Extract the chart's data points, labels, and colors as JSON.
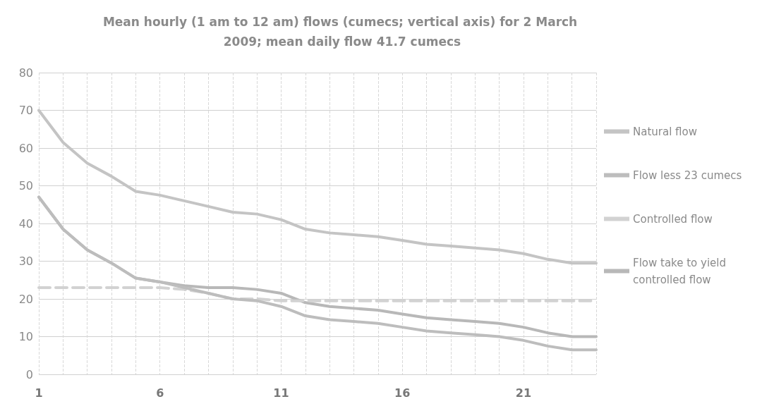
{
  "chart_data": {
    "type": "line",
    "title": "Mean hourly (1 am to 12 am) flows (cumecs; vertical axis) for 2 March 2009; mean daily flow 41.7 cumecs",
    "x": [
      1,
      2,
      3,
      4,
      5,
      6,
      7,
      8,
      9,
      10,
      11,
      12,
      13,
      14,
      15,
      16,
      17,
      18,
      19,
      20,
      21,
      22,
      23,
      24
    ],
    "xlim": [
      1,
      24
    ],
    "xticks": [
      1,
      {
        "value": 2,
        "label": null
      },
      {
        "value": 3,
        "label": null
      },
      {
        "value": 4,
        "label": null
      },
      {
        "value": 5,
        "label": null
      },
      6,
      {
        "value": 7,
        "label": null
      },
      {
        "value": 8,
        "label": null
      },
      {
        "value": 9,
        "label": null
      },
      {
        "value": 10,
        "label": null
      },
      11,
      {
        "value": 12,
        "label": null
      },
      {
        "value": 13,
        "label": null
      },
      {
        "value": 14,
        "label": null
      },
      {
        "value": 15,
        "label": null
      },
      16,
      {
        "value": 17,
        "label": null
      },
      {
        "value": 18,
        "label": null
      },
      {
        "value": 19,
        "label": null
      },
      {
        "value": 20,
        "label": null
      },
      21,
      {
        "value": 22,
        "label": null
      },
      {
        "value": 23,
        "label": null
      },
      {
        "value": 24,
        "label": null
      }
    ],
    "ylim": [
      0,
      80
    ],
    "yticks": [
      0,
      10,
      20,
      30,
      40,
      50,
      60,
      70,
      80
    ],
    "grid": true,
    "legend": "right",
    "marker": "none",
    "series": [
      {
        "name": "Natural flow",
        "color": "#c4c4c4",
        "line_style": "solid",
        "values": [
          70,
          61.5,
          56,
          52.5,
          48.5,
          47.5,
          46,
          44.5,
          43,
          42.5,
          41,
          38.5,
          37.5,
          37,
          36.5,
          35.5,
          34.5,
          34,
          33.5,
          33,
          32,
          30.5,
          29.5,
          29.5
        ]
      },
      {
        "name": "Flow less 23 cumecs",
        "color": "#bdbdbd",
        "line_style": "solid",
        "values": [
          47,
          38.5,
          33,
          29.5,
          25.5,
          24.5,
          23,
          21.5,
          20,
          19.5,
          18,
          15.5,
          14.5,
          14,
          13.5,
          12.5,
          11.5,
          11,
          10.5,
          10,
          9,
          7.5,
          6.5,
          6.5
        ]
      },
      {
        "name": "Controlled flow",
        "color": "#d2d2d2",
        "line_style": "dashed",
        "values": [
          23,
          23,
          23,
          23,
          23,
          23,
          22.5,
          21.5,
          20,
          20,
          19.5,
          19.5,
          19.5,
          19.5,
          19.5,
          19.5,
          19.5,
          19.5,
          19.5,
          19.5,
          19.5,
          19.5,
          19.5,
          19.5
        ]
      },
      {
        "name": "Flow take to yield controlled flow",
        "color": "#b8b8b8",
        "line_style": "solid",
        "values": [
          47,
          38.5,
          33,
          29.5,
          25.5,
          24.5,
          23.5,
          23,
          23,
          22.5,
          21.5,
          19,
          18,
          17.5,
          17,
          16,
          15,
          14.5,
          14,
          13.5,
          12.5,
          11,
          10,
          10
        ]
      }
    ]
  }
}
